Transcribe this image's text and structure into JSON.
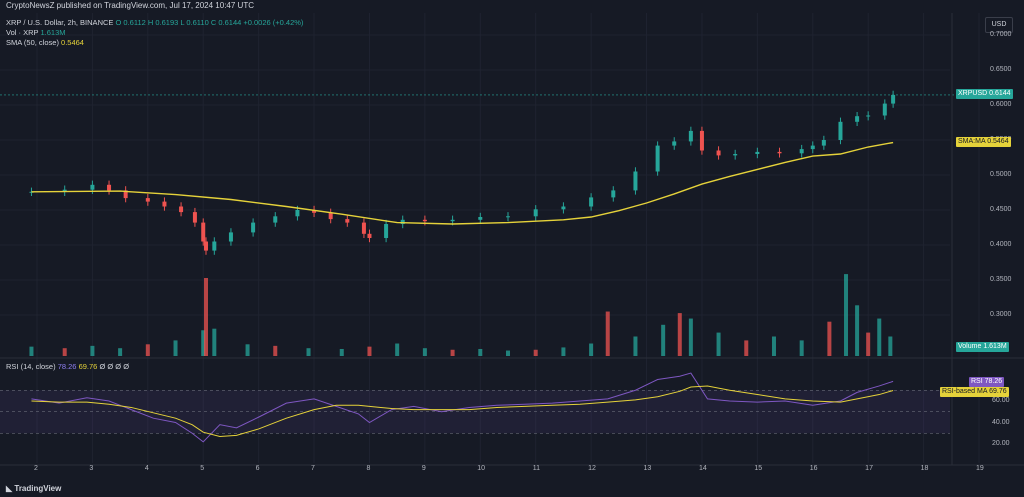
{
  "header": {
    "published": "CryptoNewsZ published on TradingView.com, Jul 17, 2024 10:47 UTC"
  },
  "legend": {
    "symbol": "XRP / U.S. Dollar, 2h, BINANCE",
    "ohlc": "O 0.6112  H 0.6193  L 0.6110  C 0.6144  +0.0026 (+0.42%)",
    "vol_label": "Vol · XRP",
    "vol_value": "1.613M",
    "sma_label": "SMA (50, close)",
    "sma_value": "0.5464",
    "rsi_label": "RSI (14, close)",
    "rsi_value": "78.26",
    "rsi_ma_value": "69.76",
    "rsi_extra": "Ø Ø Ø Ø"
  },
  "currency_button": "USD",
  "price_axis": {
    "ticks": [
      "0.7000",
      "0.6500",
      "0.6000",
      "0.5500",
      "0.5000",
      "0.4500",
      "0.4000",
      "0.3500",
      "0.3000"
    ],
    "values": [
      0.7,
      0.65,
      0.6,
      0.55,
      0.5,
      0.45,
      0.4,
      0.35,
      0.3
    ]
  },
  "rsi_axis": {
    "ticks": [
      "60.00",
      "40.00",
      "20.00"
    ],
    "values": [
      60,
      40,
      20
    ]
  },
  "x_axis": {
    "ticks": [
      "2",
      "3",
      "4",
      "5",
      "6",
      "7",
      "8",
      "9",
      "10",
      "11",
      "12",
      "13",
      "14",
      "15",
      "16",
      "17",
      "18",
      "19"
    ]
  },
  "pills": {
    "xrpusd_label": "XRPUSD",
    "xrpusd_value": "0.6144",
    "sma_label": "SMA:MA",
    "sma_value": "0.5464",
    "volume_label": "Volume",
    "volume_value": "1.613M",
    "rsi_label": "RSI",
    "rsi_value": "78.26",
    "rsi_ma_label": "RSI-based MA",
    "rsi_ma_value": "69.76"
  },
  "footer": {
    "brand": "TradingView"
  },
  "colors": {
    "up": "#26a69a",
    "down": "#ef5350",
    "sma": "#e5d23a",
    "rsi": "#7e57c2",
    "rsi_ma": "#e5d23a",
    "background": "#161a25"
  },
  "chart_data": {
    "type": "candlestick",
    "interval": "2h",
    "price_range": [
      0.26,
      0.72
    ],
    "rsi_range": [
      0,
      100
    ],
    "rsi_levels": [
      70,
      50,
      30
    ],
    "price_days": [
      1.9,
      2.5,
      3.0,
      3.3,
      3.6,
      4.0,
      4.3,
      4.6,
      4.85,
      5.0,
      5.05,
      5.2,
      5.5,
      5.9,
      6.3,
      6.7,
      7.0,
      7.3,
      7.6,
      7.9,
      8.0,
      8.3,
      8.6,
      9.0,
      9.5,
      10.0,
      10.5,
      11.0,
      11.5,
      12.0,
      12.4,
      12.8,
      13.2,
      13.5,
      13.8,
      14.0,
      14.3,
      14.6,
      15.0,
      15.4,
      15.8,
      16.0,
      16.2,
      16.5,
      16.8,
      17.0,
      17.3,
      17.45
    ],
    "price_close": [
      0.476,
      0.479,
      0.486,
      0.478,
      0.467,
      0.462,
      0.455,
      0.447,
      0.432,
      0.405,
      0.392,
      0.405,
      0.418,
      0.432,
      0.441,
      0.45,
      0.446,
      0.437,
      0.432,
      0.416,
      0.41,
      0.43,
      0.436,
      0.434,
      0.436,
      0.44,
      0.441,
      0.451,
      0.455,
      0.468,
      0.478,
      0.505,
      0.542,
      0.548,
      0.563,
      0.535,
      0.528,
      0.53,
      0.533,
      0.531,
      0.537,
      0.542,
      0.55,
      0.576,
      0.584,
      0.585,
      0.602,
      0.6144
    ],
    "sma_days": [
      1.9,
      3.5,
      4.5,
      5.5,
      6.5,
      7.5,
      8.5,
      9.5,
      10.5,
      11.5,
      12.0,
      12.5,
      13.0,
      13.5,
      14.0,
      14.5,
      15.0,
      15.5,
      16.0,
      16.5,
      17.0,
      17.45
    ],
    "sma": [
      0.476,
      0.477,
      0.472,
      0.465,
      0.455,
      0.444,
      0.432,
      0.43,
      0.432,
      0.436,
      0.44,
      0.449,
      0.46,
      0.473,
      0.487,
      0.498,
      0.508,
      0.518,
      0.527,
      0.53,
      0.54,
      0.5464
    ],
    "volume_days": [
      1.9,
      2.5,
      3.0,
      3.5,
      4.0,
      4.5,
      5.0,
      5.05,
      5.2,
      5.8,
      6.3,
      6.9,
      7.5,
      8.0,
      8.5,
      9.0,
      9.5,
      10.0,
      10.5,
      11.0,
      11.5,
      12.0,
      12.3,
      12.8,
      13.3,
      13.6,
      13.8,
      14.3,
      14.8,
      15.3,
      15.8,
      16.3,
      16.6,
      16.8,
      17.0,
      17.2,
      17.4
    ],
    "volume_rel": [
      0.12,
      0.1,
      0.13,
      0.1,
      0.15,
      0.2,
      0.33,
      1.0,
      0.35,
      0.15,
      0.13,
      0.1,
      0.09,
      0.12,
      0.16,
      0.1,
      0.08,
      0.09,
      0.07,
      0.08,
      0.11,
      0.16,
      0.57,
      0.25,
      0.4,
      0.55,
      0.48,
      0.3,
      0.2,
      0.25,
      0.2,
      0.44,
      1.05,
      0.65,
      0.3,
      0.48,
      0.25
    ],
    "rsi_days": [
      1.9,
      2.4,
      2.9,
      3.3,
      3.7,
      4.1,
      4.5,
      4.8,
      5.0,
      5.3,
      5.6,
      6.0,
      6.5,
      7.0,
      7.4,
      7.8,
      8.0,
      8.4,
      8.8,
      9.3,
      9.8,
      10.3,
      10.8,
      11.3,
      11.8,
      12.3,
      12.8,
      13.2,
      13.6,
      13.8,
      14.1,
      14.5,
      15.0,
      15.5,
      16.0,
      16.5,
      16.8,
      17.2,
      17.45
    ],
    "rsi": [
      62,
      58,
      63,
      60,
      52,
      44,
      40,
      30,
      22,
      38,
      35,
      45,
      58,
      62,
      55,
      48,
      40,
      52,
      55,
      50,
      54,
      56,
      57,
      58,
      60,
      62,
      70,
      80,
      83,
      86,
      62,
      60,
      59,
      60,
      56,
      60,
      68,
      74,
      78.26
    ],
    "rsi_ma": [
      60,
      59,
      59,
      57,
      54,
      49,
      44,
      38,
      31,
      27,
      28,
      34,
      44,
      52,
      56,
      56,
      55,
      53,
      52,
      52,
      52,
      54,
      55,
      56,
      57,
      59,
      61,
      64,
      69,
      73,
      74,
      70,
      66,
      62,
      60,
      59,
      62,
      66,
      69.76
    ]
  }
}
